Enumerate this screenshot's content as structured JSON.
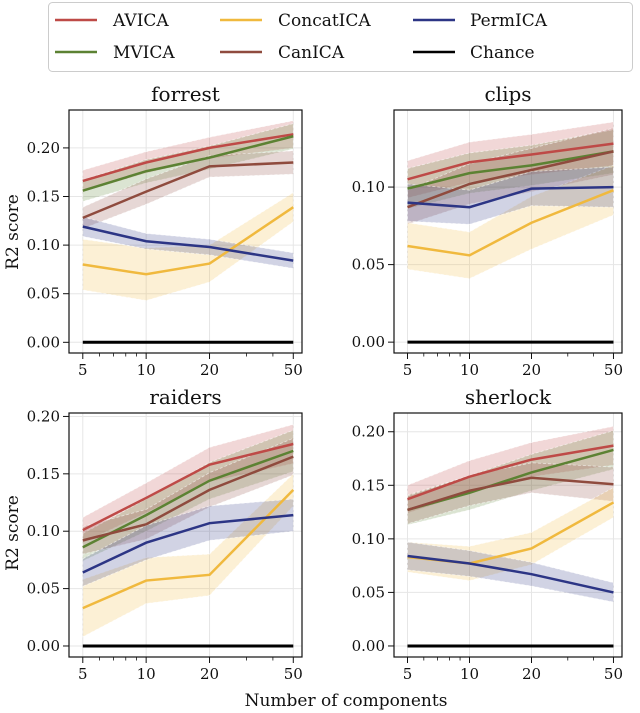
{
  "chart_data": {
    "type": "line",
    "xlabel": "Number of components",
    "ylabel": "R2 score",
    "x": [
      5,
      10,
      20,
      50
    ],
    "x_scale": "log",
    "x_ticks": [
      "5",
      "10",
      "20",
      "50"
    ],
    "grid": true,
    "legend_placement": "top",
    "legend": [
      {
        "name": "AVICA",
        "color": "#be4a47"
      },
      {
        "name": "MVICA",
        "color": "#5c8233"
      },
      {
        "name": "ConcatICA",
        "color": "#f0b93e"
      },
      {
        "name": "CanICA",
        "color": "#8f4b3e"
      },
      {
        "name": "PermICA",
        "color": "#2c3585"
      },
      {
        "name": "Chance",
        "color": "#000000"
      }
    ],
    "panels": [
      {
        "title": "forrest",
        "xlim": [
          4.3,
          55
        ],
        "ylim": [
          -0.011,
          0.239
        ],
        "yticks": [
          "0.00",
          "0.05",
          "0.10",
          "0.15",
          "0.20"
        ],
        "ytick_values": [
          0,
          0.05,
          0.1,
          0.15,
          0.2
        ],
        "series": [
          {
            "name": "AVICA",
            "values": [
              0.166,
              0.185,
              0.2,
              0.214
            ],
            "std": [
              0.011,
              0.011,
              0.011,
              0.014
            ]
          },
          {
            "name": "MVICA",
            "values": [
              0.156,
              0.176,
              0.19,
              0.212
            ],
            "std": [
              0.011,
              0.012,
              0.012,
              0.013
            ]
          },
          {
            "name": "CanICA",
            "values": [
              0.128,
              0.155,
              0.181,
              0.185
            ],
            "std": [
              0.011,
              0.013,
              0.011,
              0.012
            ]
          },
          {
            "name": "ConcatICA",
            "values": [
              0.08,
              0.07,
              0.081,
              0.139
            ],
            "std": [
              0.026,
              0.027,
              0.019,
              0.015
            ]
          },
          {
            "name": "PermICA",
            "values": [
              0.119,
              0.104,
              0.098,
              0.084
            ],
            "std": [
              0.01,
              0.008,
              0.008,
              0.008
            ]
          },
          {
            "name": "Chance",
            "values": [
              0,
              0,
              0,
              0
            ]
          }
        ]
      },
      {
        "title": "clips",
        "xlim": [
          4.3,
          55
        ],
        "ylim": [
          -0.007,
          0.1497
        ],
        "yticks": [
          "0.00",
          "0.05",
          "0.10"
        ],
        "ytick_values": [
          0,
          0.05,
          0.1
        ],
        "series": [
          {
            "name": "AVICA",
            "values": [
              0.105,
              0.116,
              0.121,
              0.128
            ],
            "std": [
              0.012,
              0.013,
              0.013,
              0.014
            ]
          },
          {
            "name": "MVICA",
            "values": [
              0.099,
              0.109,
              0.114,
              0.123
            ],
            "std": [
              0.013,
              0.013,
              0.013,
              0.014
            ]
          },
          {
            "name": "CanICA",
            "values": [
              0.087,
              0.102,
              0.111,
              0.123
            ],
            "std": [
              0.011,
              0.013,
              0.014,
              0.015
            ]
          },
          {
            "name": "ConcatICA",
            "values": [
              0.062,
              0.056,
              0.077,
              0.098
            ],
            "std": [
              0.015,
              0.015,
              0.017,
              0.016
            ]
          },
          {
            "name": "PermICA",
            "values": [
              0.09,
              0.087,
              0.099,
              0.1
            ],
            "std": [
              0.012,
              0.011,
              0.011,
              0.013
            ]
          },
          {
            "name": "Chance",
            "values": [
              0,
              0,
              0,
              0
            ]
          }
        ]
      },
      {
        "title": "raiders",
        "xlim": [
          4.3,
          55
        ],
        "ylim": [
          -0.0096,
          0.203
        ],
        "yticks": [
          "0.00",
          "0.05",
          "0.10",
          "0.15",
          "0.20"
        ],
        "ytick_values": [
          0,
          0.05,
          0.1,
          0.15,
          0.2
        ],
        "series": [
          {
            "name": "AVICA",
            "values": [
              0.101,
              0.129,
              0.158,
              0.176
            ],
            "std": [
              0.011,
              0.013,
              0.015,
              0.017
            ]
          },
          {
            "name": "MVICA",
            "values": [
              0.086,
              0.114,
              0.144,
              0.17
            ],
            "std": [
              0.012,
              0.014,
              0.016,
              0.018
            ]
          },
          {
            "name": "CanICA",
            "values": [
              0.092,
              0.106,
              0.136,
              0.165
            ],
            "std": [
              0.012,
              0.013,
              0.015,
              0.016
            ]
          },
          {
            "name": "ConcatICA",
            "values": [
              0.033,
              0.057,
              0.062,
              0.136
            ],
            "std": [
              0.025,
              0.02,
              0.018,
              0.014
            ]
          },
          {
            "name": "PermICA",
            "values": [
              0.064,
              0.09,
              0.107,
              0.114
            ],
            "std": [
              0.012,
              0.015,
              0.015,
              0.014
            ]
          },
          {
            "name": "Chance",
            "values": [
              0,
              0,
              0,
              0
            ]
          }
        ]
      },
      {
        "title": "sherlock",
        "xlim": [
          4.3,
          55
        ],
        "ylim": [
          -0.0103,
          0.2175
        ],
        "yticks": [
          "0.00",
          "0.05",
          "0.10",
          "0.15",
          "0.20"
        ],
        "ytick_values": [
          0,
          0.05,
          0.1,
          0.15,
          0.2
        ],
        "series": [
          {
            "name": "AVICA",
            "values": [
              0.137,
              0.158,
              0.174,
              0.187
            ],
            "std": [
              0.013,
              0.015,
              0.016,
              0.018
            ]
          },
          {
            "name": "MVICA",
            "values": [
              0.127,
              0.143,
              0.162,
              0.183
            ],
            "std": [
              0.014,
              0.016,
              0.017,
              0.018
            ]
          },
          {
            "name": "CanICA",
            "values": [
              0.127,
              0.145,
              0.157,
              0.151
            ],
            "std": [
              0.013,
              0.014,
              0.014,
              0.016
            ]
          },
          {
            "name": "ConcatICA",
            "values": [
              0.083,
              0.077,
              0.091,
              0.134
            ],
            "std": [
              0.014,
              0.016,
              0.015,
              0.014
            ]
          },
          {
            "name": "PermICA",
            "values": [
              0.084,
              0.077,
              0.067,
              0.05
            ],
            "std": [
              0.013,
              0.012,
              0.011,
              0.009
            ]
          },
          {
            "name": "Chance",
            "values": [
              0,
              0,
              0,
              0
            ]
          }
        ]
      }
    ]
  }
}
